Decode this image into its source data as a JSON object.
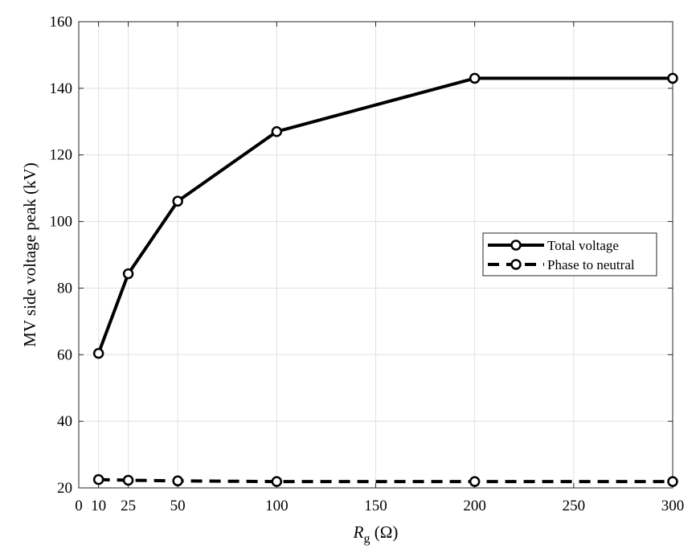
{
  "chart_data": {
    "type": "line",
    "ylabel": "MV side voltage peak (kV)",
    "xlabel": {
      "main": "R",
      "sub": "g",
      "unit": " (Ω)"
    },
    "xlim": [
      0,
      300
    ],
    "ylim": [
      20,
      160
    ],
    "xticks": [
      0,
      10,
      25,
      50,
      100,
      150,
      200,
      250,
      300
    ],
    "xtick_labels": [
      "0",
      "10",
      "25",
      "50",
      "100",
      "150",
      "200",
      "250",
      "300"
    ],
    "yticks": [
      20,
      40,
      60,
      80,
      100,
      120,
      140,
      160
    ],
    "ytick_labels": [
      "20",
      "40",
      "60",
      "80",
      "100",
      "120",
      "140",
      "160"
    ],
    "grid": true,
    "legend_position": "right",
    "series": [
      {
        "name": "Total voltage",
        "style": "solid",
        "color": "#000000",
        "x": [
          10,
          25,
          50,
          100,
          200,
          300
        ],
        "y": [
          60.4,
          84.3,
          106.1,
          127.0,
          143.0,
          143.0
        ]
      },
      {
        "name": "Phase to neutral",
        "style": "dashed",
        "color": "#000000",
        "x": [
          10,
          25,
          50,
          100,
          200,
          300
        ],
        "y": [
          22.5,
          22.3,
          22.1,
          21.9,
          21.9,
          21.9
        ]
      }
    ]
  }
}
